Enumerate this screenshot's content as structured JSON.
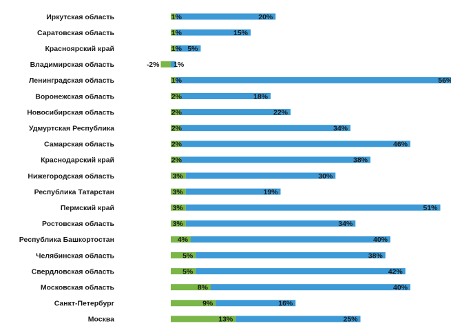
{
  "chart_data": {
    "type": "bar",
    "orientation": "horizontal",
    "stacked": true,
    "categories": [
      "Иркутская область",
      "Саратовская область",
      "Красноярский край",
      "Владимирская область",
      "Ленинградская область",
      "Воронежская область",
      "Новосибирская область",
      "Удмуртская Республика",
      "Самарская область",
      "Краснодарский край",
      "Нижегородская область",
      "Республика Татарстан",
      "Пермский край",
      "Ростовская область",
      "Республика Башкортостан",
      "Челябинская область",
      "Свердловская область",
      "Московская область",
      "Санкт-Петербург",
      "Москва"
    ],
    "series": [
      {
        "color": "#7ab648",
        "values": [
          1,
          1,
          1,
          -2,
          1,
          2,
          2,
          2,
          2,
          2,
          3,
          3,
          3,
          3,
          4,
          5,
          5,
          8,
          9,
          13
        ],
        "labels": [
          "1%",
          "1%",
          "1%",
          "-2%",
          "1%",
          "2%",
          "2%",
          "2%",
          "2%",
          "2%",
          "3%",
          "3%",
          "3%",
          "3%",
          "4%",
          "5%",
          "5%",
          "8%",
          "9%",
          "13%"
        ]
      },
      {
        "color": "#3d9ad6",
        "values": [
          20,
          15,
          5,
          1,
          56,
          18,
          22,
          34,
          46,
          38,
          30,
          19,
          51,
          34,
          40,
          38,
          42,
          40,
          16,
          25
        ],
        "labels": [
          "20%",
          "15%",
          "5%",
          "1%",
          "56%",
          "18%",
          "22%",
          "34%",
          "46%",
          "38%",
          "30%",
          "19%",
          "51%",
          "34%",
          "40%",
          "38%",
          "42%",
          "40%",
          "16%",
          "25%"
        ]
      }
    ],
    "grid": false,
    "legend": "none"
  }
}
